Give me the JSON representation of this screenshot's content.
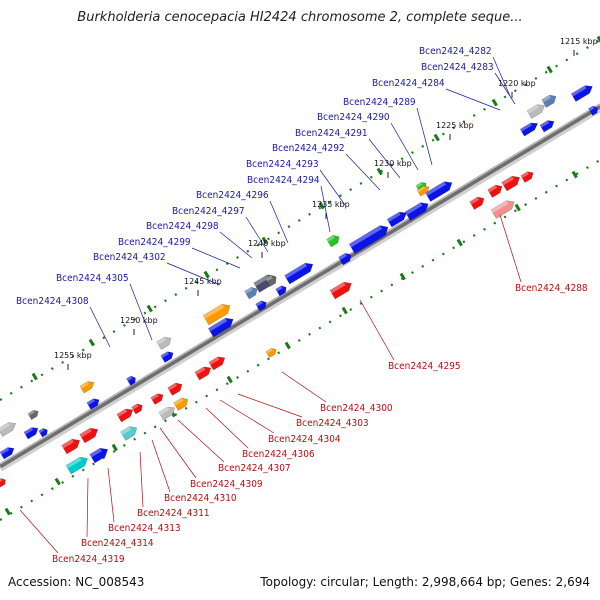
{
  "title": "Burkholderia cenocepacia HI2424 chromosome 2, complete seque...",
  "footer": {
    "accession": "Accession: NC_008543",
    "stats": "Topology: circular; Length: 2,998,664 bp; Genes: 2,694"
  },
  "colors": {
    "forward": "#0a14e6",
    "reverse": "#ee1111",
    "backbone": "#808080",
    "tick": "#1a7a1a",
    "label_forward": "#1a1aa0",
    "label_reverse": "#b01010"
  },
  "scale_ticks": [
    {
      "label": "1215 kbp"
    },
    {
      "label": "1220 kbp"
    },
    {
      "label": "1225 kbp"
    },
    {
      "label": "1230 kbp"
    },
    {
      "label": "1235 kbp"
    },
    {
      "label": "1240 kbp"
    },
    {
      "label": "1245 kbp"
    },
    {
      "label": "1250 kbp"
    },
    {
      "label": "1255 kbp"
    }
  ],
  "forward_genes": [
    {
      "label": "Bcen2424_4282"
    },
    {
      "label": "Bcen2424_4283"
    },
    {
      "label": "Bcen2424_4284"
    },
    {
      "label": "Bcen2424_4289"
    },
    {
      "label": "Bcen2424_4290"
    },
    {
      "label": "Bcen2424_4291"
    },
    {
      "label": "Bcen2424_4292"
    },
    {
      "label": "Bcen2424_4293"
    },
    {
      "label": "Bcen2424_4294"
    },
    {
      "label": "Bcen2424_4296"
    },
    {
      "label": "Bcen2424_4297"
    },
    {
      "label": "Bcen2424_4298"
    },
    {
      "label": "Bcen2424_4299"
    },
    {
      "label": "Bcen2424_4302"
    },
    {
      "label": "Bcen2424_4305"
    },
    {
      "label": "Bcen2424_4308"
    }
  ],
  "reverse_genes": [
    {
      "label": "Bcen2424_4288"
    },
    {
      "label": "Bcen2424_4295"
    },
    {
      "label": "Bcen2424_4300"
    },
    {
      "label": "Bcen2424_4303"
    },
    {
      "label": "Bcen2424_4304"
    },
    {
      "label": "Bcen2424_4306"
    },
    {
      "label": "Bcen2424_4307"
    },
    {
      "label": "Bcen2424_4309"
    },
    {
      "label": "Bcen2424_4310"
    },
    {
      "label": "Bcen2424_4311"
    },
    {
      "label": "Bcen2424_4313"
    },
    {
      "label": "Bcen2424_4314"
    },
    {
      "label": "Bcen2424_4319"
    }
  ]
}
